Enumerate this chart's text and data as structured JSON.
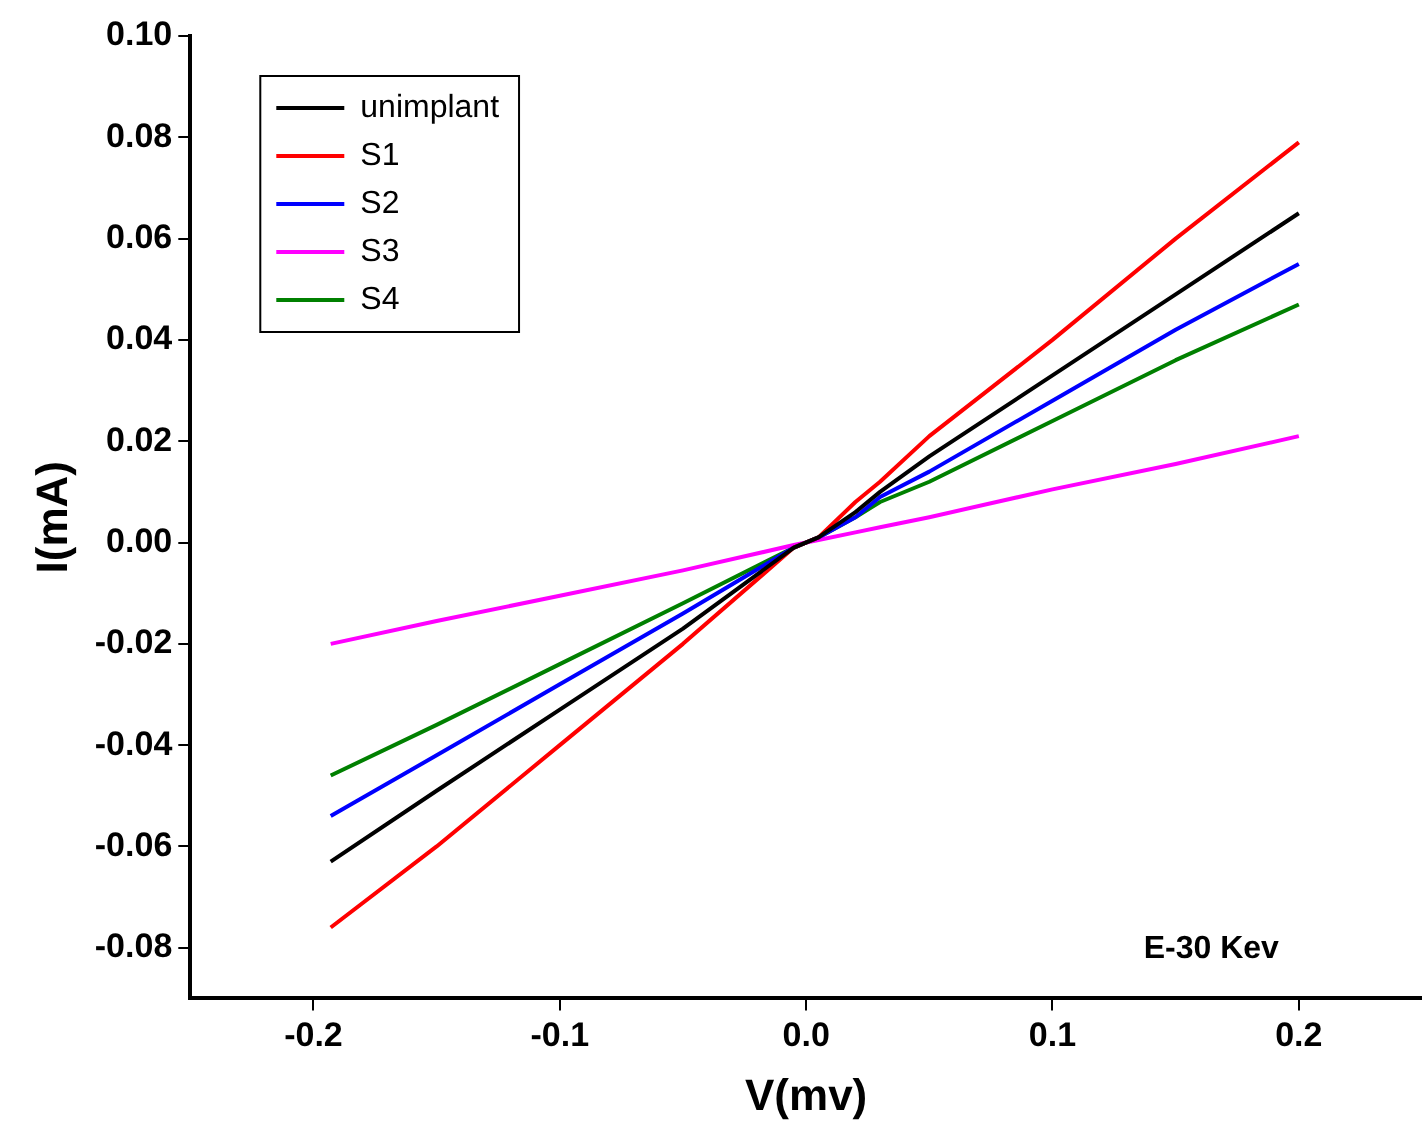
{
  "chart_data": {
    "type": "line",
    "xlabel": "V(mv)",
    "ylabel": "I(mA)",
    "xlim": [
      -0.25,
      0.25
    ],
    "xticks": [
      -0.2,
      -0.1,
      {
        "value": 0,
        "label": "0.0"
      },
      0.1,
      0.2
    ],
    "ylim": [
      -0.09,
      0.1
    ],
    "yticks": [
      {
        "value": -0.08,
        "label": "-0.08"
      },
      {
        "value": -0.06,
        "label": "-0.06"
      },
      {
        "value": -0.04,
        "label": "-0.04"
      },
      {
        "value": -0.02,
        "label": "-0.02"
      },
      {
        "value": 0,
        "label": "0.00"
      },
      {
        "value": 0.02,
        "label": "0.02"
      },
      {
        "value": 0.04,
        "label": "0.04"
      },
      {
        "value": 0.06,
        "label": "0.06"
      },
      {
        "value": 0.08,
        "label": "0.08"
      },
      {
        "value": 0.1,
        "label": "0.10"
      }
    ],
    "x": [
      -0.193,
      -0.15,
      -0.1,
      -0.05,
      -0.005,
      0.005,
      0.02,
      0.03,
      0.05,
      0.1,
      0.15,
      0.2
    ],
    "grid": false,
    "legend": "top left",
    "marker": "none",
    "line_style": "solid",
    "annotations": [
      "E-30 Kev"
    ],
    "series": [
      {
        "name": "unimplant",
        "color": "#000000",
        "values": [
          -0.063,
          -0.049,
          -0.033,
          -0.017,
          -0.001,
          0.001,
          0.006,
          0.01,
          0.017,
          0.033,
          0.049,
          0.065
        ]
      },
      {
        "name": "S1",
        "color": "#ff0000",
        "values": [
          -0.076,
          -0.06,
          -0.04,
          -0.02,
          -0.001,
          0.001,
          0.008,
          0.012,
          0.021,
          0.04,
          0.06,
          0.079
        ]
      },
      {
        "name": "S2",
        "color": "#0000ff",
        "values": [
          -0.054,
          -0.042,
          -0.028,
          -0.014,
          -0.001,
          0.001,
          0.005,
          0.009,
          0.014,
          0.028,
          0.042,
          0.055
        ]
      },
      {
        "name": "S3",
        "color": "#ff00ff",
        "values": [
          -0.02,
          -0.0155,
          -0.0105,
          -0.0055,
          -0.0005,
          0.0005,
          0.002,
          0.003,
          0.005,
          0.0105,
          0.0155,
          0.021
        ]
      },
      {
        "name": "S4",
        "color": "#008000",
        "values": [
          -0.046,
          -0.036,
          -0.024,
          -0.012,
          -0.001,
          0.001,
          0.005,
          0.008,
          0.012,
          0.024,
          0.036,
          0.047
        ]
      }
    ]
  }
}
